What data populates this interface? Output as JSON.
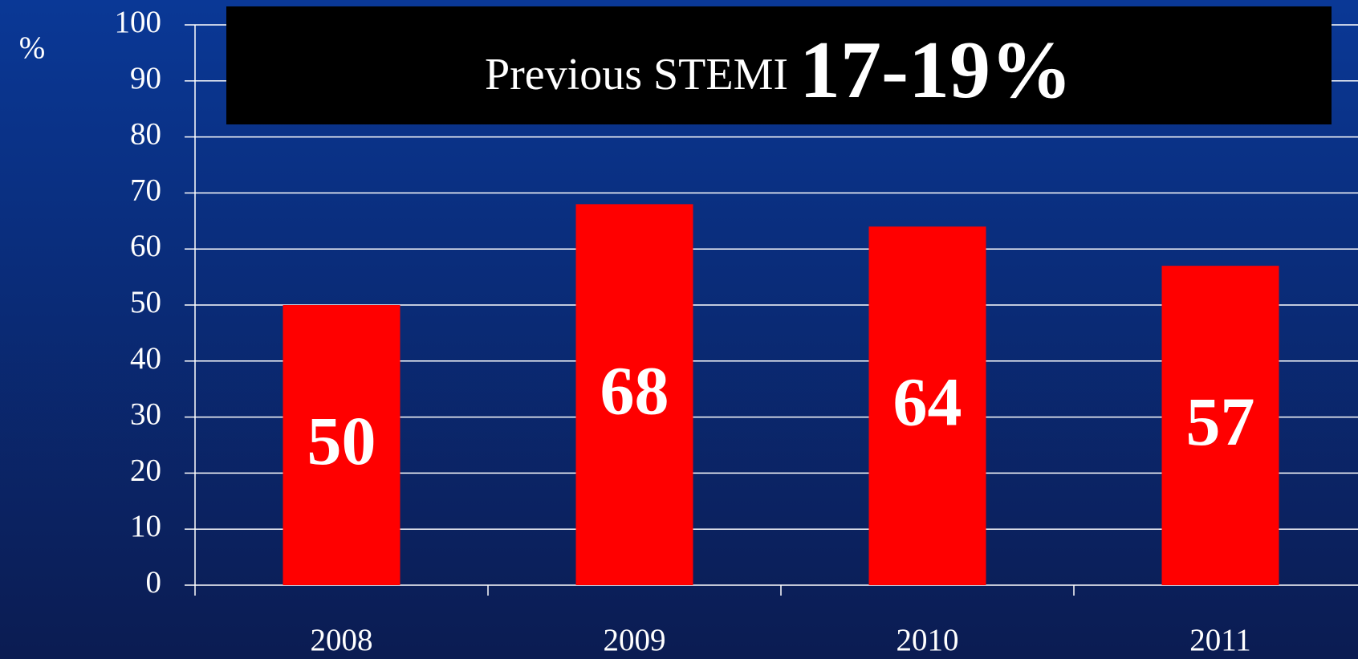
{
  "chart_data": {
    "type": "bar",
    "title": "Previous STEMI",
    "title_highlight": "17-19%",
    "y_label": "%",
    "categories": [
      "2008",
      "2009",
      "2010",
      "2011"
    ],
    "values": [
      50,
      68,
      64,
      57
    ],
    "color": "#ff0000",
    "ylim": [
      0,
      100
    ],
    "yticks": [
      0,
      10,
      20,
      30,
      40,
      50,
      60,
      70,
      80,
      90,
      100
    ],
    "grid": true,
    "data_labels": true
  }
}
